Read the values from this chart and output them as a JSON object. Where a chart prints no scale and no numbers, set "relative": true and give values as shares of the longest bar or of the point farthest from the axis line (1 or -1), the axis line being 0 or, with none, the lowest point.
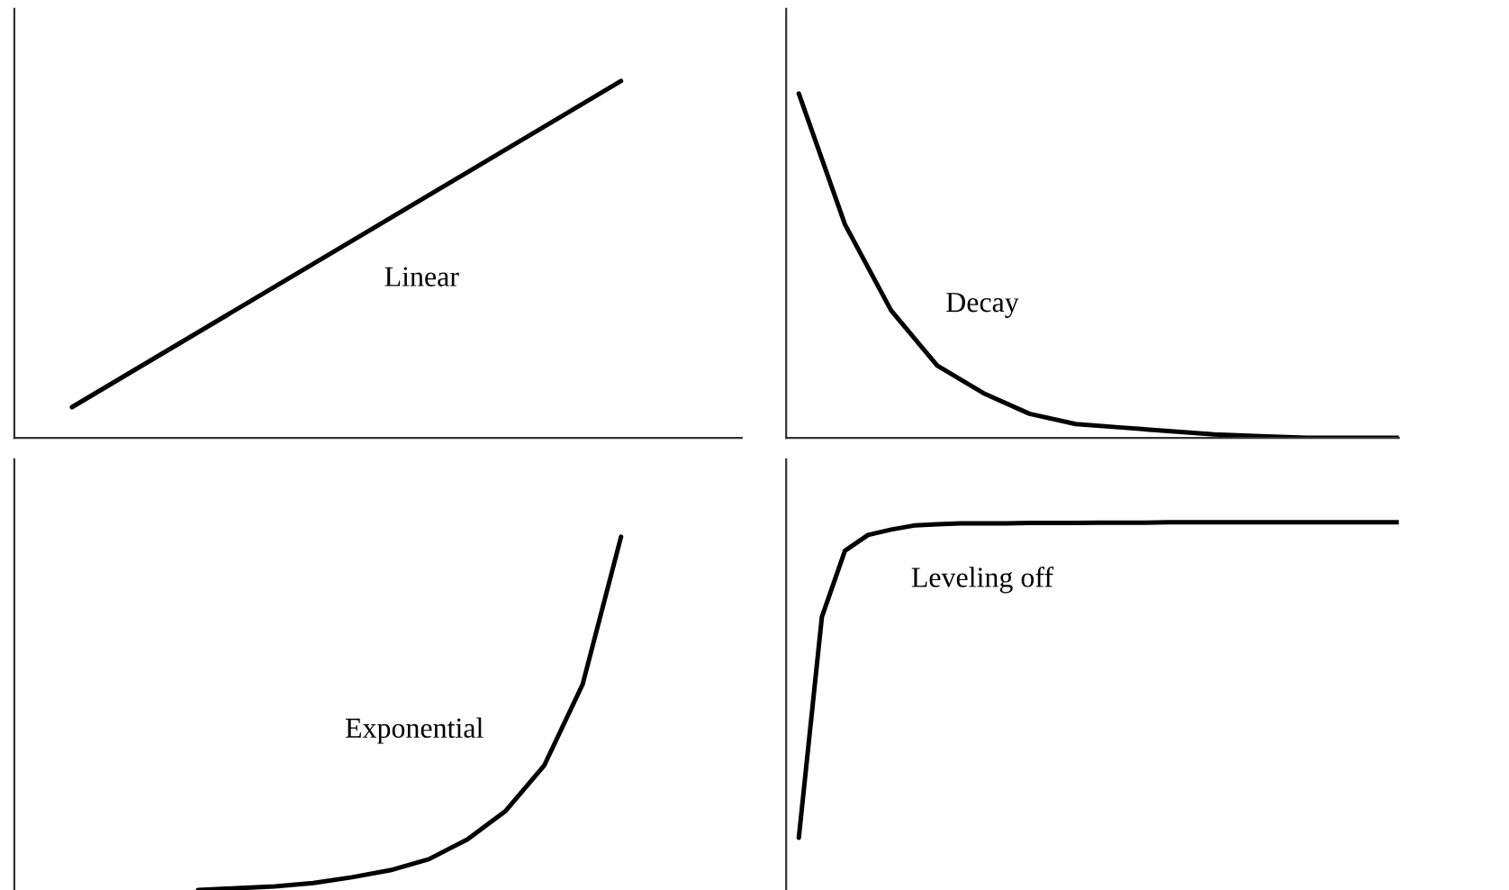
{
  "chart_data": [
    {
      "type": "line",
      "relative": true,
      "tick_labels": false,
      "categories": [
        null,
        null
      ],
      "series": [
        {
          "color": "#000000",
          "values": [
            0.086,
            1
          ]
        }
      ],
      "annotations": [
        "Linear"
      ]
    },
    {
      "type": "line",
      "relative": true,
      "tick_labels": false,
      "categories": [
        null,
        null,
        null,
        null,
        null,
        null,
        null,
        null,
        null,
        null,
        null,
        null,
        null,
        null
      ],
      "series": [
        {
          "color": "#000000",
          "values": [
            1,
            0.62,
            0.37,
            0.21,
            0.13,
            0.07,
            0.04,
            0.03,
            0.02,
            0.01,
            0.005,
            0,
            0,
            0
          ]
        }
      ],
      "annotations": [
        "Decay"
      ]
    },
    {
      "type": "line",
      "relative": true,
      "tick_labels": false,
      "categories": [
        null,
        null,
        null,
        null,
        null,
        null,
        null,
        null,
        null,
        null,
        null,
        null
      ],
      "series": [
        {
          "color": "#000000",
          "values": [
            0,
            0.005,
            0.01,
            0.02,
            0.036,
            0.056,
            0.087,
            0.143,
            0.224,
            0.352,
            0.582,
            1
          ]
        }
      ],
      "annotations": [
        "Exponential"
      ]
    },
    {
      "type": "line",
      "relative": true,
      "tick_labels": false,
      "categories": [
        null,
        null,
        null,
        null,
        null,
        null,
        null,
        null,
        null,
        null,
        null,
        null,
        null,
        null,
        null,
        null,
        null,
        null,
        null,
        null,
        null,
        null,
        null,
        null,
        null,
        null,
        null
      ],
      "series": [
        {
          "color": "#000000",
          "values": [
            0,
            0.7,
            0.91,
            0.96,
            0.977,
            0.99,
            0.994,
            0.997,
            0.997,
            0.997,
            0.998,
            0.998,
            0.998,
            0.999,
            0.999,
            0.999,
            1,
            1,
            1,
            1,
            1,
            1,
            1,
            1,
            1,
            1,
            1
          ]
        }
      ],
      "annotations": [
        "Leveling off"
      ]
    }
  ]
}
